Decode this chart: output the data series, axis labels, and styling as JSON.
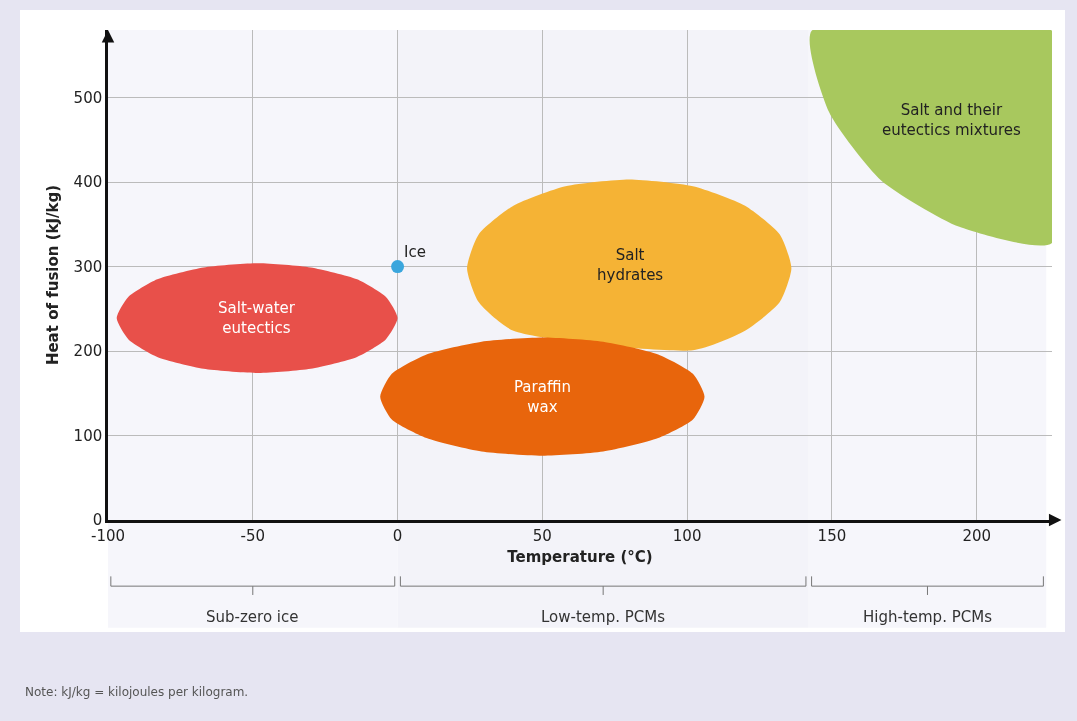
{
  "chart_data": {
    "type": "area",
    "xlabel": "Temperature (°C)",
    "ylabel": "Heat of fusion (kJ/kg)",
    "xlim": [
      -100,
      226
    ],
    "ylim": [
      0,
      580
    ],
    "xticks": [
      -100,
      -50,
      0,
      50,
      100,
      150,
      200
    ],
    "yticks": [
      0,
      100,
      200,
      300,
      400,
      500
    ],
    "grid": true,
    "legend": false,
    "series": [
      {
        "name": "Salt-water eutectics",
        "color": "#e8504a",
        "x": [
          0,
          -4,
          -14,
          -30,
          -48,
          -67,
          -83,
          -93,
          -97,
          -93,
          -83,
          -67,
          -48,
          -30,
          -14,
          -4,
          0
        ],
        "values": [
          239,
          264,
          285,
          299,
          304,
          299,
          285,
          264,
          239,
          214,
          193,
          179,
          174,
          179,
          193,
          214,
          239
        ]
      },
      {
        "name": "Salt hydrates",
        "color": "#f5b335",
        "x": [
          136,
          132,
          120,
          102,
          80,
          58,
          40,
          28,
          24,
          28,
          40,
          58,
          80,
          102,
          120,
          132,
          136
        ],
        "values": [
          298,
          338,
          372,
          395,
          403,
          395,
          372,
          338,
          298,
          258,
          224,
          null,
          null,
          201,
          224,
          258,
          298
        ]
      },
      {
        "name": "Paraffin wax",
        "color": "#e8650c",
        "x": [
          106,
          102,
          90,
          71,
          50,
          29,
          10,
          -2,
          -6,
          -2,
          10,
          29,
          50,
          71,
          90,
          102,
          106
        ],
        "values": [
          146,
          173,
          196,
          211,
          216,
          211,
          196,
          173,
          146,
          119,
          97,
          81,
          76,
          81,
          97,
          119,
          146
        ]
      },
      {
        "name": "Salt and their eutectics mixtures",
        "color": "#a8c85e",
        "x": [
          143,
          149,
          167,
          194,
          226,
          226,
          143
        ],
        "values": [
          579,
          483,
          402,
          347,
          328,
          579,
          579
        ]
      },
      {
        "name": "Ice",
        "type": "scatter",
        "marker": "circle",
        "color": "#3aa6dd",
        "x": [
          0
        ],
        "values": [
          300
        ]
      }
    ],
    "bands": [
      {
        "axis": "x",
        "from": -100,
        "to": 0,
        "label": "Sub-zero ice",
        "color": "#f6f6fb"
      },
      {
        "axis": "x",
        "from": 0,
        "to": 142,
        "label": "Low-temp. PCMs",
        "color": "#f3f3f9"
      },
      {
        "axis": "x",
        "from": 142,
        "to": 224,
        "label": "High-temp. PCMs",
        "color": "#f6f6fb"
      }
    ],
    "annotations": [
      "Note: kJ/kg = kilojoules per kilogram."
    ]
  }
}
